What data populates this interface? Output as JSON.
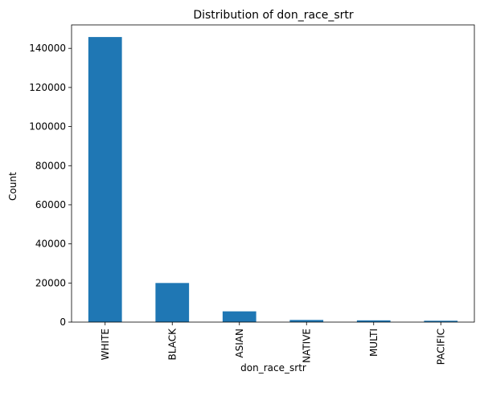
{
  "chart_data": {
    "type": "bar",
    "title": "Distribution of don_race_srtr",
    "xlabel": "don_race_srtr",
    "ylabel": "Count",
    "categories": [
      "WHITE",
      "BLACK",
      "ASIAN",
      "NATIVE",
      "MULTI",
      "PACIFIC"
    ],
    "values": [
      145800,
      20000,
      5500,
      1100,
      900,
      700
    ],
    "ylim": [
      0,
      152000
    ],
    "yticks": [
      0,
      20000,
      40000,
      60000,
      80000,
      100000,
      120000,
      140000
    ],
    "ytick_labels": [
      "0",
      "20000",
      "40000",
      "60000",
      "80000",
      "100000",
      "120000",
      "140000"
    ],
    "bar_color": "#1f77b4",
    "grid": false
  }
}
